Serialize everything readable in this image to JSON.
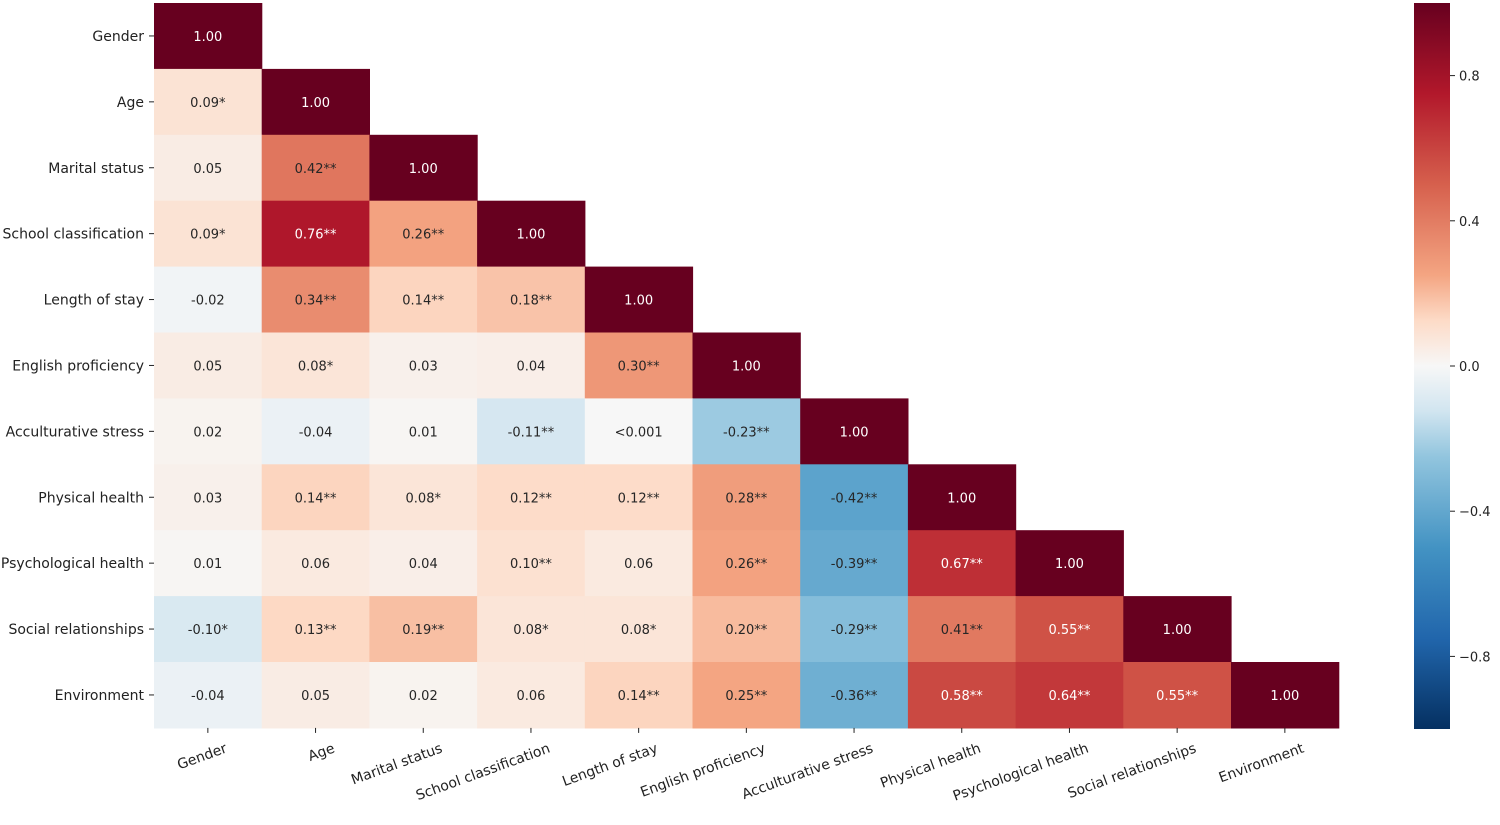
{
  "chart_data": {
    "type": "heatmap",
    "title": "",
    "xlabel": "",
    "ylabel": "",
    "variables": [
      "Gender",
      "Age",
      "Marital status",
      "School classification",
      "Length of stay",
      "English proficiency",
      "Acculturative stress",
      "Physical health",
      "Psychological health",
      "Social relationships",
      "Environment"
    ],
    "values": [
      [
        1.0
      ],
      [
        0.09,
        1.0
      ],
      [
        0.05,
        0.42,
        1.0
      ],
      [
        0.09,
        0.76,
        0.26,
        1.0
      ],
      [
        -0.02,
        0.34,
        0.14,
        0.18,
        1.0
      ],
      [
        0.05,
        0.08,
        0.03,
        0.04,
        0.3,
        1.0
      ],
      [
        0.02,
        -0.04,
        0.01,
        -0.11,
        0.0,
        -0.23,
        1.0
      ],
      [
        0.03,
        0.14,
        0.08,
        0.12,
        0.12,
        0.28,
        -0.42,
        1.0
      ],
      [
        0.01,
        0.06,
        0.04,
        0.1,
        0.06,
        0.26,
        -0.39,
        0.67,
        1.0
      ],
      [
        -0.1,
        0.13,
        0.19,
        0.08,
        0.08,
        0.2,
        -0.29,
        0.41,
        0.55,
        1.0
      ],
      [
        -0.04,
        0.05,
        0.02,
        0.06,
        0.14,
        0.25,
        -0.36,
        0.58,
        0.64,
        0.55,
        1.0
      ]
    ],
    "cell_labels": [
      [
        "1.00"
      ],
      [
        "0.09*",
        "1.00"
      ],
      [
        "0.05",
        "0.42**",
        "1.00"
      ],
      [
        "0.09*",
        "0.76**",
        "0.26**",
        "1.00"
      ],
      [
        "-0.02",
        "0.34**",
        "0.14**",
        "0.18**",
        "1.00"
      ],
      [
        "0.05",
        "0.08*",
        "0.03",
        "0.04",
        "0.30**",
        "1.00"
      ],
      [
        "0.02",
        "-0.04",
        "0.01",
        "-0.11**",
        "<0.001",
        "-0.23**",
        "1.00"
      ],
      [
        "0.03",
        "0.14**",
        "0.08*",
        "0.12**",
        "0.12**",
        "0.28**",
        "-0.42**",
        "1.00"
      ],
      [
        "0.01",
        "0.06",
        "0.04",
        "0.10**",
        "0.06",
        "0.26**",
        "-0.39**",
        "0.67**",
        "1.00"
      ],
      [
        "-0.10*",
        "0.13**",
        "0.19**",
        "0.08*",
        "0.08*",
        "0.20**",
        "-0.29**",
        "0.41**",
        "0.55**",
        "1.00"
      ],
      [
        "-0.04",
        "0.05",
        "0.02",
        "0.06",
        "0.14**",
        "0.25**",
        "-0.36**",
        "0.58**",
        "0.64**",
        "0.55**",
        "1.00"
      ]
    ],
    "colorbar": {
      "range": [
        -1.0,
        1.0
      ],
      "ticks": [
        0.8,
        0.4,
        0.0,
        -0.4,
        -0.8
      ],
      "tick_labels": [
        "0.8",
        "0.4",
        "0.0",
        "−0.4",
        "−0.8"
      ],
      "colormap": "RdBu_r"
    }
  }
}
